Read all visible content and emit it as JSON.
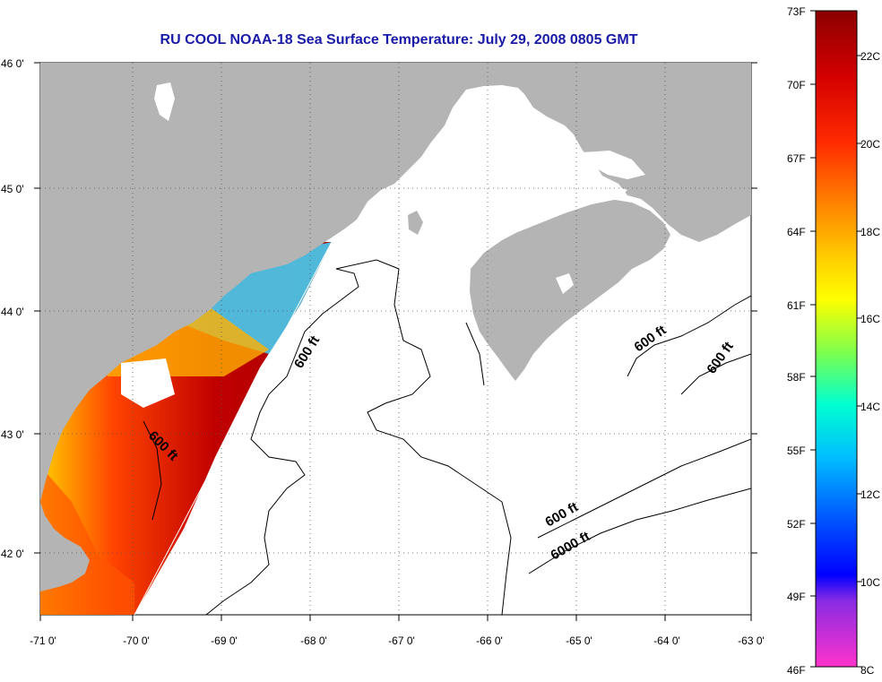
{
  "title": "RU COOL  NOAA-18  Sea Surface Temperature:  July 29, 2008 0805 GMT",
  "x_ticks": [
    "-71 0'",
    "-70 0'",
    "-69 0'",
    "-68 0'",
    "-67 0'",
    "-66 0'",
    "-65 0'",
    "-64 0'",
    "-63 0'"
  ],
  "y_ticks": [
    "46 0'",
    "45 0'",
    "44 0'",
    "43 0'",
    "42 0'"
  ],
  "contour_labels": [
    "600 ft",
    "600 ft",
    "600 ft",
    "600 ft",
    "600 ft",
    "6000 ft"
  ],
  "colorbar": {
    "fahrenheit": [
      "73F",
      "70F",
      "67F",
      "64F",
      "61F",
      "58F",
      "55F",
      "52F",
      "49F",
      "46F"
    ],
    "celsius": [
      "22C",
      "20C",
      "18C",
      "16C",
      "14C",
      "12C",
      "10C",
      "8C"
    ]
  },
  "colors": {
    "land": "#b4b4b4",
    "title": "#1a1aa8",
    "sst_scale": [
      "#ff33cc",
      "#0000ff",
      "#00bfff",
      "#00ffcc",
      "#ffff00",
      "#ff9900",
      "#ff2200",
      "#8b0000"
    ]
  }
}
